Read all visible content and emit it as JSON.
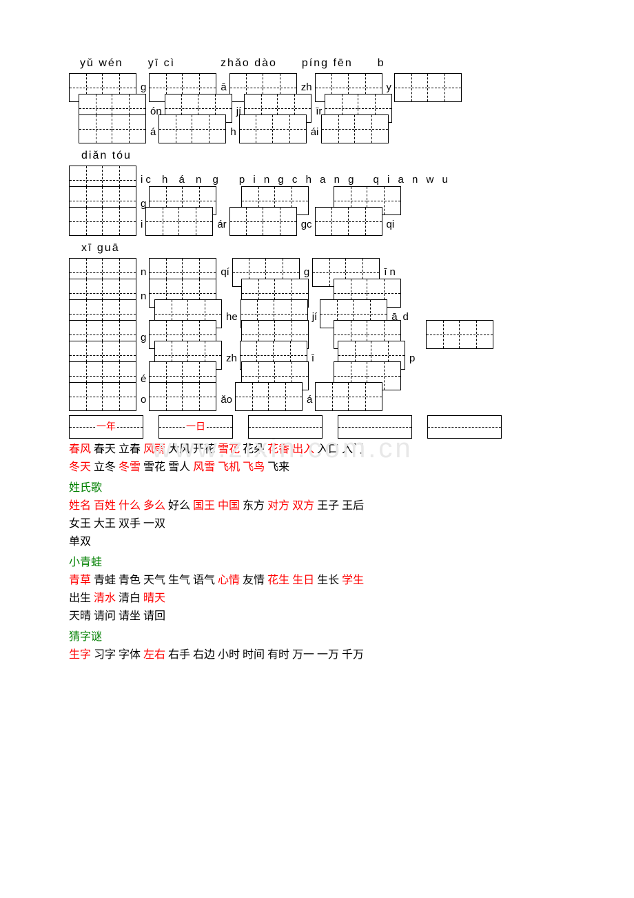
{
  "pinyin_rows": [
    {
      "segs": [
        "yǔ wén",
        "  ",
        "yī cì",
        "   ",
        "zhǎo dào",
        " ",
        "píng fēn",
        "  ",
        "b"
      ]
    },
    {
      "segs": [
        "",
        "g",
        "",
        "ā",
        "",
        "zh",
        "",
        "y"
      ]
    },
    {
      "segs": [
        "",
        "ón",
        "",
        "jí",
        "",
        "īr",
        ""
      ]
    },
    {
      "segs": [
        "",
        "á",
        "",
        "h",
        "",
        "ái",
        ""
      ]
    },
    {
      "segs": [
        "diǎn tóu"
      ]
    },
    {
      "segs": [
        "",
        "i",
        "  ",
        "c  h  á n g",
        "  ",
        "p i n g   c h a n g",
        "  ",
        "q i a n   w u"
      ]
    },
    {
      "segs": [
        "",
        "g",
        "",
        "",
        "",
        "",
        ""
      ]
    },
    {
      "segs": [
        "",
        "i",
        "",
        "ár",
        "",
        "gc",
        "",
        "qi"
      ]
    },
    {
      "segs": [
        "xī guā"
      ]
    },
    {
      "segs": [
        "",
        "n",
        "",
        "qí",
        "",
        "g",
        "",
        "ī n"
      ]
    },
    {
      "segs": [
        "",
        "n",
        "",
        "",
        "",
        "",
        ""
      ]
    },
    {
      "segs": [
        "",
        "",
        "he",
        "",
        "jí",
        "",
        "ā",
        "",
        "d"
      ]
    },
    {
      "segs": [
        "",
        "g",
        "",
        "",
        "",
        "",
        ""
      ]
    },
    {
      "segs": [
        "",
        "",
        "zh",
        "",
        "ī",
        "",
        "p"
      ]
    },
    {
      "segs": [
        "",
        "é",
        "",
        "",
        "",
        "",
        ""
      ]
    },
    {
      "segs": [
        "",
        "o",
        "",
        "ǎo",
        "",
        "á",
        ""
      ]
    }
  ],
  "mid_labels": [
    "一年",
    "一日",
    "",
    "",
    ""
  ],
  "sections": [
    {
      "title": "",
      "lines": [
        [
          {
            "t": "春风",
            "r": true
          },
          {
            "t": " 春天 立春 "
          },
          {
            "t": "风雨",
            "r": true
          },
          {
            "t": " 大风 开花 "
          },
          {
            "t": "雪花",
            "r": true
          },
          {
            "t": " 花朵 "
          },
          {
            "t": "花香 出入",
            "r": true
          },
          {
            "t": " 入口 入门"
          }
        ],
        [
          {
            "t": "冬天",
            "r": true
          },
          {
            "t": " 立冬 "
          },
          {
            "t": "冬雪",
            "r": true
          },
          {
            "t": " 雪花 雪人 "
          },
          {
            "t": "风雪 飞机 飞鸟",
            "r": true
          },
          {
            "t": " 飞来"
          }
        ]
      ]
    },
    {
      "title": "姓氏歌",
      "lines": [
        [
          {
            "t": "姓名 百姓 什么 多么",
            "r": true
          },
          {
            "t": " 好么 "
          },
          {
            "t": "国王 中国",
            "r": true
          },
          {
            "t": " 东方 "
          },
          {
            "t": "对方 双方",
            "r": true
          },
          {
            "t": " 王子 王后"
          }
        ],
        [
          {
            "t": "女王 大王 双手 一双"
          }
        ],
        [
          {
            "t": "单双"
          }
        ]
      ]
    },
    {
      "title": "小青蛙",
      "lines": [
        [
          {
            "t": "青草",
            "r": true
          },
          {
            "t": " 青蛙 青色 天气 生气 语气 "
          },
          {
            "t": "心情",
            "r": true
          },
          {
            "t": " 友情 "
          },
          {
            "t": "花生 生日",
            "r": true
          },
          {
            "t": " 生长 "
          },
          {
            "t": "学生",
            "r": true
          }
        ],
        [
          {
            "t": "出生 "
          },
          {
            "t": "清水",
            "r": true
          },
          {
            "t": " 清白 "
          },
          {
            "t": "晴天",
            "r": true
          }
        ],
        [
          {
            "t": "天晴 请问 请坐 请回"
          }
        ]
      ]
    },
    {
      "title": "猜字谜",
      "lines": [
        [
          {
            "t": "生字",
            "r": true
          },
          {
            "t": " 习字 字体 "
          },
          {
            "t": "左右",
            "r": true
          },
          {
            "t": " 右手 右边 小时 时间 有时 万一 一万 千万"
          }
        ]
      ]
    }
  ],
  "watermark": "www.zixin.com.cn"
}
